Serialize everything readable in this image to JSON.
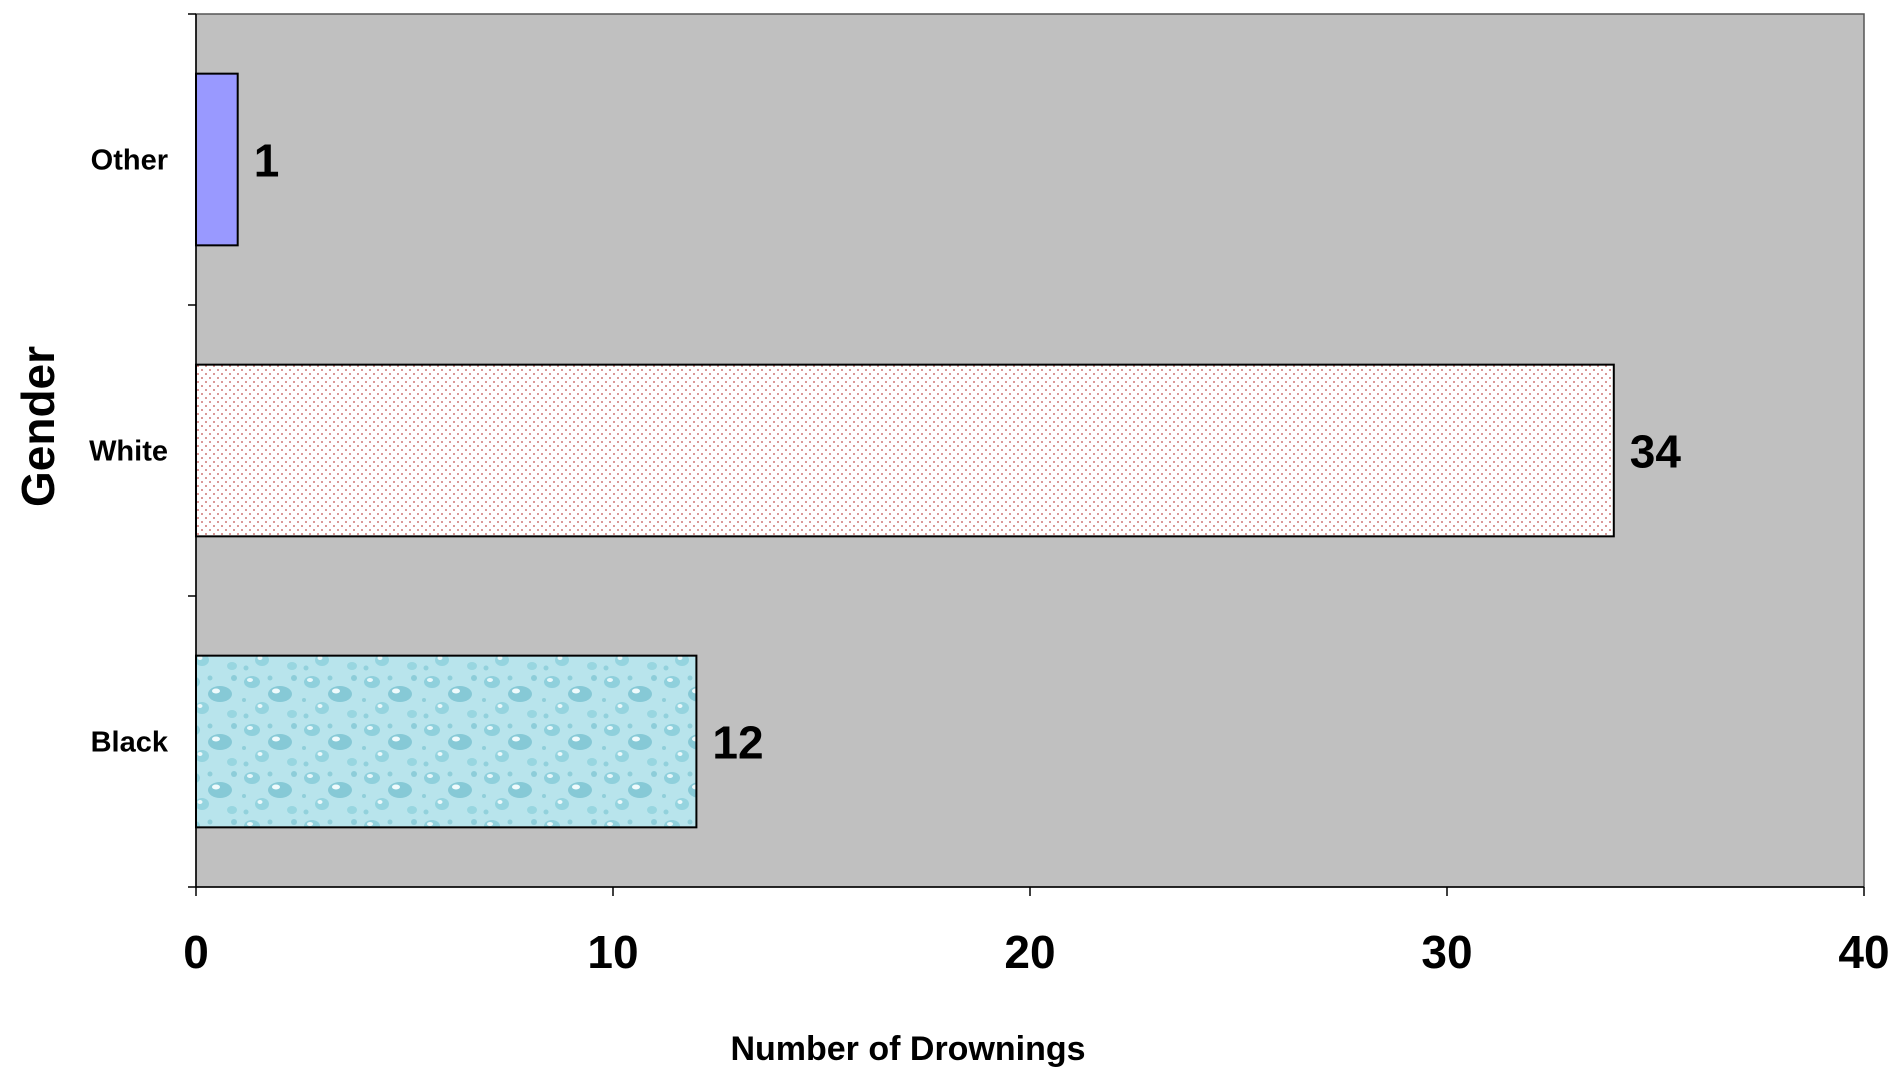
{
  "chart_data": {
    "type": "bar",
    "orientation": "horizontal",
    "categories": [
      "Black",
      "White",
      "Other"
    ],
    "values": [
      12,
      34,
      1
    ],
    "data_labels": [
      "12",
      "34",
      "1"
    ],
    "xlabel": "Number of Drownings",
    "ylabel": "Gender",
    "xlim": [
      0,
      40
    ],
    "xticks": [
      0,
      10,
      20,
      30,
      40
    ],
    "xtick_labels": [
      "0",
      "10",
      "20",
      "30",
      "40"
    ],
    "grid": false,
    "legend": "none",
    "colors": {
      "plot_background": "#c0c0c0",
      "Black": "#a8dde6",
      "White": "#ffffff",
      "White_dots": "#c0504d",
      "Other": "#9999ff",
      "bar_edge": "#000000"
    }
  }
}
